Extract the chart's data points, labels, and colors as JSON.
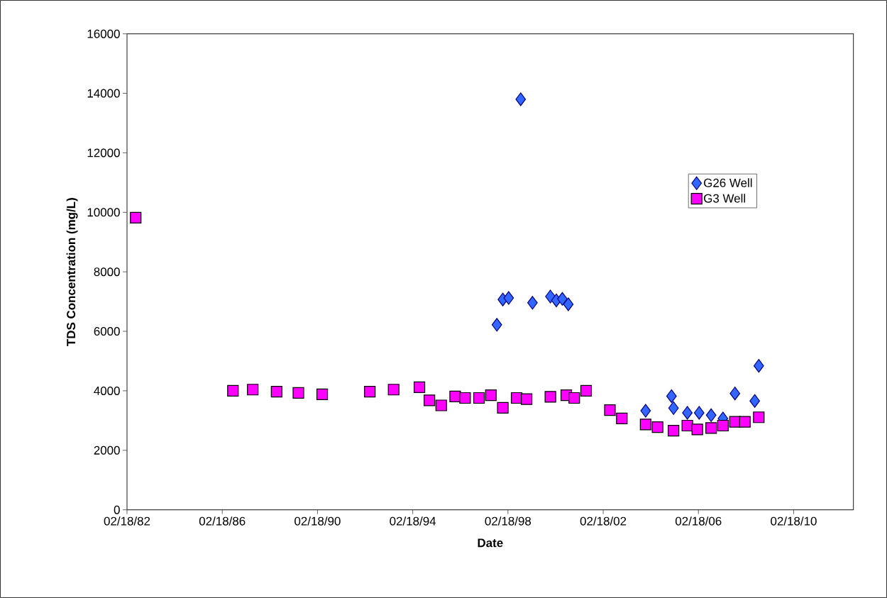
{
  "chart_data": {
    "type": "scatter",
    "xlabel": "Date",
    "ylabel": "TDS Concentration (mg/L)",
    "xlim": [
      "1982-02-18",
      "2012-08-22"
    ],
    "ylim": [
      0,
      16000
    ],
    "xticks": [
      {
        "value": "1982-02-18",
        "label": "02/18/82"
      },
      {
        "value": "1986-02-18",
        "label": "02/18/86"
      },
      {
        "value": "1990-02-18",
        "label": "02/18/90"
      },
      {
        "value": "1994-02-18",
        "label": "02/18/94"
      },
      {
        "value": "1998-02-18",
        "label": "02/18/98"
      },
      {
        "value": "2002-02-18",
        "label": "02/18/02"
      },
      {
        "value": "2006-02-18",
        "label": "02/18/06"
      },
      {
        "value": "2010-02-18",
        "label": "02/18/10"
      }
    ],
    "yticks": [
      0,
      2000,
      4000,
      6000,
      8000,
      10000,
      12000,
      14000,
      16000
    ],
    "grid": false,
    "legend": "right",
    "series": [
      {
        "name": "G26 Well",
        "color": "#3366ff",
        "marker": "diamond",
        "x": [
          "1997-09",
          "1997-12",
          "1998-03",
          "1998-09",
          "1999-03",
          "1999-12",
          "2000-03",
          "2000-06",
          "2000-09",
          "2003-12",
          "2005-01",
          "2005-02",
          "2005-09",
          "2006-03",
          "2006-09",
          "2007-03",
          "2007-09",
          "2008-02",
          "2008-07",
          "2008-09"
        ],
        "values": [
          6220,
          7070,
          7120,
          13800,
          6960,
          7170,
          7040,
          7090,
          6910,
          3330,
          3820,
          3420,
          3260,
          3260,
          3180,
          3070,
          3910,
          null,
          3660,
          4840
        ]
      },
      {
        "name": "G3 Well",
        "color": "#ff00ff",
        "marker": "square",
        "x": [
          "1982-07",
          "1986-08",
          "1987-06",
          "1988-06",
          "1989-05",
          "1990-05",
          "1992-05",
          "1993-05",
          "1994-06",
          "1994-11",
          "1995-05",
          "1995-12",
          "1996-05",
          "1996-12",
          "1997-06",
          "1997-12",
          "1998-07",
          "1998-12",
          "1999-12",
          "2000-08",
          "2000-12",
          "2001-06",
          "2002-06",
          "2002-12",
          "2003-12",
          "2004-06",
          "2005-02",
          "2005-09",
          "2006-02",
          "2006-09",
          "2007-03",
          "2007-09",
          "2008-02",
          "2008-09"
        ],
        "values": [
          9820,
          4000,
          4040,
          3970,
          3930,
          3880,
          3970,
          4040,
          4120,
          3680,
          3510,
          3810,
          3760,
          3760,
          3850,
          3430,
          3760,
          3720,
          3800,
          3850,
          3760,
          4000,
          3350,
          3070,
          2870,
          2780,
          2660,
          2830,
          2700,
          2750,
          2830,
          2960,
          2960,
          3110
        ]
      }
    ]
  }
}
